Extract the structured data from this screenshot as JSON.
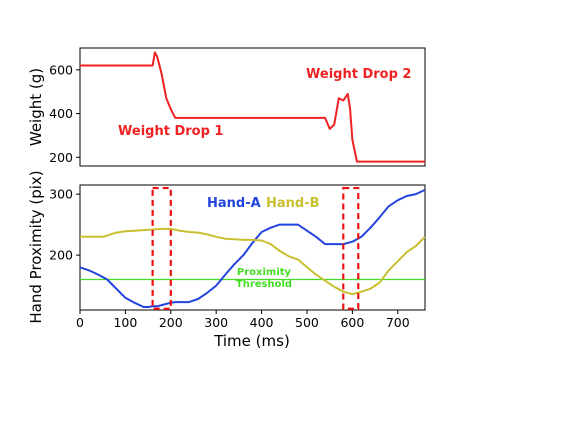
{
  "chart_data": [
    {
      "type": "line",
      "ylabel": "Weight (g)",
      "ylim": [
        160,
        700
      ],
      "xlim": [
        0,
        760
      ],
      "yticks": [
        "200",
        "400",
        "600"
      ],
      "series": [
        {
          "color": "#ee2222",
          "x": [
            0,
            150,
            160,
            165,
            170,
            180,
            190,
            200,
            210,
            300,
            400,
            500,
            540,
            550,
            560,
            570,
            580,
            590,
            595,
            600,
            610,
            620,
            700,
            760
          ],
          "values": [
            620,
            620,
            620,
            680,
            660,
            580,
            470,
            420,
            380,
            380,
            380,
            380,
            380,
            330,
            350,
            470,
            460,
            490,
            420,
            280,
            180,
            180,
            180,
            180
          ]
        }
      ],
      "annotations": [
        "Weight Drop 1",
        "Weight Drop 2"
      ],
      "grid": false
    },
    {
      "type": "line",
      "xlabel": "Time (ms)",
      "ylabel": "Hand Proximity (pix)",
      "ylim": [
        110,
        315
      ],
      "xlim": [
        0,
        760
      ],
      "xticks": [
        "0",
        "100",
        "200",
        "300",
        "400",
        "500",
        "600",
        "700"
      ],
      "yticks": [
        "200",
        "300"
      ],
      "series": [
        {
          "name": "Hand-A",
          "color": "#2244dd",
          "x": [
            0,
            20,
            40,
            60,
            80,
            100,
            120,
            140,
            150,
            160,
            170,
            180,
            190,
            200,
            210,
            220,
            240,
            260,
            280,
            300,
            320,
            340,
            360,
            380,
            400,
            420,
            440,
            460,
            480,
            500,
            520,
            540,
            560,
            580,
            600,
            620,
            640,
            660,
            680,
            700,
            720,
            740,
            760
          ],
          "values": [
            180,
            175,
            168,
            160,
            145,
            130,
            122,
            115,
            115,
            116,
            116,
            118,
            120,
            122,
            123,
            123,
            123,
            128,
            138,
            150,
            168,
            185,
            200,
            220,
            238,
            245,
            250,
            250,
            250,
            240,
            230,
            218,
            218,
            218,
            222,
            230,
            245,
            262,
            280,
            290,
            297,
            300,
            307
          ]
        },
        {
          "name": "Hand-B",
          "color": "#c8c030",
          "x": [
            0,
            50,
            60,
            80,
            100,
            120,
            140,
            160,
            180,
            200,
            220,
            240,
            260,
            280,
            300,
            320,
            340,
            360,
            380,
            400,
            420,
            440,
            460,
            480,
            500,
            520,
            540,
            560,
            580,
            600,
            620,
            640,
            660,
            680,
            700,
            720,
            740,
            760
          ],
          "values": [
            230,
            230,
            232,
            237,
            239,
            240,
            241,
            242,
            243,
            243,
            240,
            238,
            237,
            234,
            230,
            227,
            226,
            225,
            225,
            224,
            218,
            207,
            198,
            193,
            180,
            168,
            158,
            148,
            140,
            136,
            140,
            145,
            155,
            175,
            190,
            205,
            215,
            230
          ]
        }
      ],
      "threshold": {
        "label": "Proximity Threshold",
        "value": 160,
        "color": "#44dd22"
      },
      "legend_placement": "top-center",
      "highlight_boxes": [
        {
          "x": [
            160,
            200
          ],
          "y": [
            112,
            310
          ]
        },
        {
          "x": [
            580,
            613
          ],
          "y": [
            112,
            310
          ]
        }
      ],
      "grid": false
    }
  ],
  "labels": {
    "drop1": "Weight Drop 1",
    "drop2": "Weight Drop 2",
    "handA": "Hand-A",
    "handB": "Hand-B",
    "threshold_line1": "Proximity",
    "threshold_line2": "Threshold"
  },
  "colors": {
    "weight": "#ee2222",
    "handA": "#2244dd",
    "handB": "#c8c030",
    "threshold": "#44dd22",
    "box": "#ee1111"
  }
}
